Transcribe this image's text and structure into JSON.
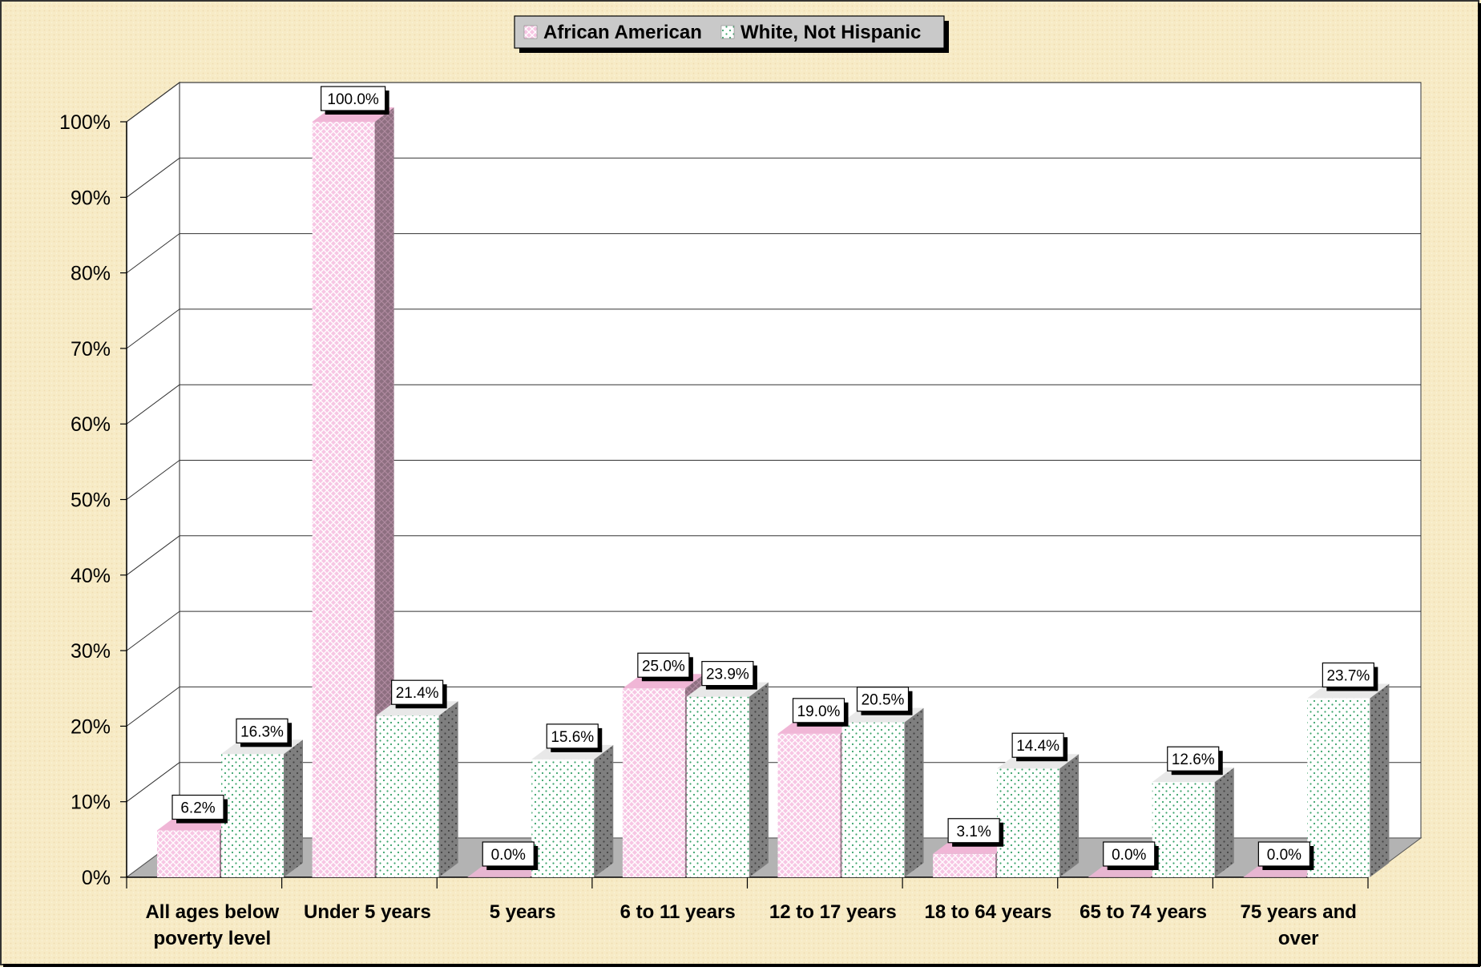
{
  "chart_data": {
    "type": "bar",
    "categories": [
      [
        "All ages below",
        "poverty level"
      ],
      [
        "Under 5 years"
      ],
      [
        "5 years"
      ],
      [
        "6 to 11 years"
      ],
      [
        "12 to 17 years"
      ],
      [
        "18 to 64 years"
      ],
      [
        "65 to 74 years"
      ],
      [
        "75 years and",
        "over"
      ]
    ],
    "series": [
      {
        "name": "African American",
        "values": [
          6.2,
          100.0,
          0.0,
          25.0,
          19.0,
          3.1,
          0.0,
          0.0
        ],
        "labels": [
          "6.2%",
          "100.0%",
          "0.0%",
          "25.0%",
          "19.0%",
          "3.1%",
          "0.0%",
          "0.0%"
        ],
        "color": "#f7c6e4",
        "pattern_color": "#ffffff",
        "side_color": "#8d6f80"
      },
      {
        "name": "White, Not Hispanic",
        "values": [
          16.3,
          21.4,
          15.6,
          23.9,
          20.5,
          14.4,
          12.6,
          23.7
        ],
        "labels": [
          "16.3%",
          "21.4%",
          "15.6%",
          "23.9%",
          "20.5%",
          "14.4%",
          "12.6%",
          "23.7%"
        ],
        "color": "#ffffff",
        "pattern_color": "#3aa36a",
        "side_color": "#7f7f7f"
      }
    ],
    "y_ticks": [
      "0%",
      "10%",
      "20%",
      "30%",
      "40%",
      "50%",
      "60%",
      "70%",
      "80%",
      "90%",
      "100%"
    ],
    "ylim": [
      0,
      100
    ],
    "grid": true,
    "legend": "top-center",
    "colors": {
      "background": "#f7ebc6",
      "floor": "#b3b3b3",
      "plot_back": "#ffffff"
    }
  }
}
